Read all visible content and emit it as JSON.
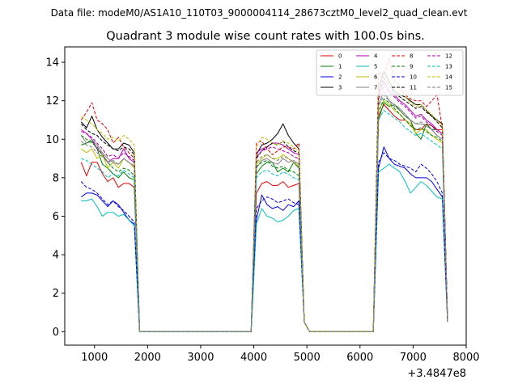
{
  "chart_data": {
    "type": "line",
    "suptitle": "Data file: modeM0/AS1A10_110T03_9000004114_28673cztM0_level2_quad_clean.evt",
    "title": "Quadrant 3 module wise count rates with 100.0s bins.",
    "xlabel": "",
    "ylabel": "",
    "x_offset_label": "+3.4847e8",
    "xlim": [
      440,
      8000
    ],
    "ylim": [
      -0.7,
      14.8
    ],
    "xticks": [
      1000,
      2000,
      3000,
      4000,
      5000,
      6000,
      7000,
      8000
    ],
    "yticks": [
      0,
      2,
      4,
      6,
      8,
      10,
      12,
      14
    ],
    "x": [
      750,
      850,
      950,
      1050,
      1150,
      1250,
      1350,
      1450,
      1550,
      1650,
      1750,
      1850,
      1950,
      2050,
      2150,
      2250,
      2350,
      2450,
      2550,
      2650,
      2750,
      2850,
      2950,
      3050,
      3150,
      3250,
      3350,
      3450,
      3550,
      3650,
      3750,
      3850,
      3950,
      4050,
      4150,
      4250,
      4350,
      4450,
      4550,
      4650,
      4750,
      4850,
      4950,
      5050,
      5150,
      5250,
      5350,
      5450,
      5550,
      5650,
      5750,
      5850,
      5950,
      6050,
      6150,
      6250,
      6350,
      6450,
      6550,
      6650,
      6750,
      6850,
      6950,
      7050,
      7150,
      7250,
      7350,
      7450,
      7550,
      7650
    ],
    "series": [
      {
        "name": "0",
        "color": "#e00000",
        "dash": false,
        "values": [
          8.8,
          8.1,
          8.8,
          8.8,
          8.2,
          7.8,
          8.0,
          7.5,
          7.7,
          7.7,
          7.5,
          0,
          0,
          0,
          0,
          0,
          0,
          0,
          0,
          0,
          0,
          0,
          0,
          0,
          0,
          0,
          0,
          0,
          0,
          0,
          0,
          0,
          0,
          7.2,
          7.7,
          7.8,
          7.6,
          7.6,
          7.8,
          7.5,
          7.6,
          7.7,
          0.5,
          0,
          0,
          0,
          0,
          0,
          0,
          0,
          0,
          0,
          0,
          0,
          0,
          0,
          11.2,
          11.8,
          11.5,
          11.2,
          11.0,
          11.0,
          10.8,
          10.5,
          10.5,
          10.8,
          10.7,
          10.5,
          10.5,
          0.5
        ]
      },
      {
        "name": "1",
        "color": "#008000",
        "dash": false,
        "values": [
          9.7,
          9.8,
          9.9,
          9.5,
          8.7,
          8.5,
          8.2,
          8.0,
          8.3,
          8.0,
          7.9,
          0,
          0,
          0,
          0,
          0,
          0,
          0,
          0,
          0,
          0,
          0,
          0,
          0,
          0,
          0,
          0,
          0,
          0,
          0,
          0,
          0,
          0,
          8.2,
          8.6,
          8.8,
          8.8,
          8.3,
          8.5,
          8.3,
          8.8,
          8.5,
          0.5,
          0,
          0,
          0,
          0,
          0,
          0,
          0,
          0,
          0,
          0,
          0,
          0,
          0,
          11.0,
          11.9,
          11.7,
          11.8,
          11.5,
          11.2,
          11.0,
          10.3,
          10.0,
          10.8,
          10.5,
          10.5,
          10.3,
          0.5
        ]
      },
      {
        "name": "2",
        "color": "#0000e0",
        "dash": false,
        "values": [
          7.0,
          7.2,
          7.2,
          7.1,
          6.8,
          6.5,
          6.8,
          6.6,
          6.2,
          5.8,
          5.6,
          0,
          0,
          0,
          0,
          0,
          0,
          0,
          0,
          0,
          0,
          0,
          0,
          0,
          0,
          0,
          0,
          0,
          0,
          0,
          0,
          0,
          0,
          5.8,
          7.1,
          6.6,
          6.4,
          6.5,
          6.3,
          6.6,
          6.5,
          6.8,
          0.5,
          0,
          0,
          0,
          0,
          0,
          0,
          0,
          0,
          0,
          0,
          0,
          0,
          0,
          8.5,
          9.6,
          9.0,
          8.7,
          8.6,
          8.5,
          8.2,
          8.0,
          8.0,
          8.0,
          7.8,
          7.4,
          7.0,
          0.5
        ]
      },
      {
        "name": "3",
        "color": "#000000",
        "dash": false,
        "values": [
          10.9,
          10.6,
          11.2,
          10.5,
          10.1,
          9.8,
          9.5,
          9.5,
          9.8,
          9.7,
          9.3,
          0,
          0,
          0,
          0,
          0,
          0,
          0,
          0,
          0,
          0,
          0,
          0,
          0,
          0,
          0,
          0,
          0,
          0,
          0,
          0,
          0,
          0,
          9.2,
          9.7,
          9.8,
          10.0,
          10.3,
          10.8,
          10.2,
          9.8,
          9.5,
          0.5,
          0,
          0,
          0,
          0,
          0,
          0,
          0,
          0,
          0,
          0,
          0,
          0,
          0,
          12.6,
          13.5,
          13.0,
          12.5,
          12.3,
          12.2,
          12.0,
          11.8,
          11.8,
          11.5,
          11.2,
          11.0,
          10.8,
          0.5
        ]
      },
      {
        "name": "4",
        "color": "#b000b0",
        "dash": false,
        "values": [
          10.5,
          10.3,
          10.0,
          9.5,
          9.2,
          8.8,
          9.0,
          9.0,
          9.5,
          9.0,
          8.8,
          0,
          0,
          0,
          0,
          0,
          0,
          0,
          0,
          0,
          0,
          0,
          0,
          0,
          0,
          0,
          0,
          0,
          0,
          0,
          0,
          0,
          0,
          9.3,
          9.5,
          9.6,
          9.8,
          9.8,
          9.7,
          9.5,
          9.3,
          9.2,
          0.5,
          0,
          0,
          0,
          0,
          0,
          0,
          0,
          0,
          0,
          0,
          0,
          0,
          0,
          12.3,
          13.0,
          12.5,
          12.3,
          12.0,
          11.8,
          11.5,
          11.2,
          11.3,
          11.0,
          10.8,
          10.5,
          10.3,
          0.5
        ]
      },
      {
        "name": "5",
        "color": "#00c0c0",
        "dash": false,
        "values": [
          6.8,
          6.8,
          6.9,
          6.5,
          6.0,
          6.2,
          6.2,
          6.0,
          6.1,
          5.8,
          5.5,
          0,
          0,
          0,
          0,
          0,
          0,
          0,
          0,
          0,
          0,
          0,
          0,
          0,
          0,
          0,
          0,
          0,
          0,
          0,
          0,
          0,
          0,
          5.6,
          6.4,
          6.0,
          5.9,
          5.7,
          5.8,
          6.0,
          6.3,
          6.4,
          0.5,
          0,
          0,
          0,
          0,
          0,
          0,
          0,
          0,
          0,
          0,
          0,
          0,
          0,
          8.3,
          8.5,
          8.7,
          8.5,
          8.3,
          7.8,
          7.2,
          7.5,
          7.8,
          7.6,
          7.3,
          7.0,
          6.9,
          0.5
        ]
      },
      {
        "name": "6",
        "color": "#c0c000",
        "dash": false,
        "values": [
          9.5,
          9.3,
          9.5,
          9.0,
          9.2,
          8.5,
          8.8,
          8.5,
          9.0,
          8.8,
          8.5,
          0,
          0,
          0,
          0,
          0,
          0,
          0,
          0,
          0,
          0,
          0,
          0,
          0,
          0,
          0,
          0,
          0,
          0,
          0,
          0,
          0,
          0,
          8.7,
          9.0,
          9.2,
          9.0,
          9.0,
          9.2,
          9.0,
          8.8,
          8.6,
          0.5,
          0,
          0,
          0,
          0,
          0,
          0,
          0,
          0,
          0,
          0,
          0,
          0,
          0,
          11.5,
          12.0,
          11.8,
          11.5,
          11.3,
          11.0,
          10.8,
          10.3,
          10.5,
          10.5,
          10.2,
          10.0,
          9.8,
          0.5
        ]
      },
      {
        "name": "7",
        "color": "#808080",
        "dash": false,
        "values": [
          10.2,
          9.8,
          10.0,
          9.7,
          9.3,
          9.0,
          8.8,
          8.7,
          9.0,
          8.8,
          8.6,
          0,
          0,
          0,
          0,
          0,
          0,
          0,
          0,
          0,
          0,
          0,
          0,
          0,
          0,
          0,
          0,
          0,
          0,
          0,
          0,
          0,
          0,
          8.5,
          8.9,
          9.0,
          8.8,
          8.7,
          9.0,
          8.8,
          8.9,
          8.7,
          0.5,
          0,
          0,
          0,
          0,
          0,
          0,
          0,
          0,
          0,
          0,
          0,
          0,
          0,
          11.8,
          12.5,
          12.0,
          11.8,
          11.6,
          11.3,
          11.0,
          10.8,
          10.8,
          10.7,
          10.5,
          10.2,
          10.0,
          0.5
        ]
      },
      {
        "name": "8",
        "color": "#e00000",
        "dash": true,
        "values": [
          11.0,
          11.4,
          11.9,
          11.0,
          10.8,
          10.5,
          9.8,
          10.1,
          9.6,
          9.3,
          9.0,
          0,
          0,
          0,
          0,
          0,
          0,
          0,
          0,
          0,
          0,
          0,
          0,
          0,
          0,
          0,
          0,
          0,
          0,
          0,
          0,
          0,
          0,
          9.8,
          9.9,
          9.5,
          9.2,
          9.4,
          9.6,
          9.6,
          9.5,
          9.8,
          0.5,
          0,
          0,
          0,
          0,
          0,
          0,
          0,
          0,
          0,
          0,
          0,
          0,
          0,
          13.5,
          13.2,
          14.2,
          13.0,
          12.8,
          12.3,
          12.1,
          12.0,
          12.0,
          11.7,
          12.0,
          12.3,
          10.6,
          0.5
        ]
      },
      {
        "name": "9",
        "color": "#008000",
        "dash": true,
        "values": [
          10.2,
          10.0,
          9.8,
          9.6,
          9.2,
          8.8,
          8.5,
          8.3,
          8.5,
          8.4,
          8.1,
          0,
          0,
          0,
          0,
          0,
          0,
          0,
          0,
          0,
          0,
          0,
          0,
          0,
          0,
          0,
          0,
          0,
          0,
          0,
          0,
          0,
          0,
          8.6,
          8.8,
          8.9,
          8.6,
          8.5,
          8.6,
          8.4,
          8.3,
          8.1,
          0.5,
          0,
          0,
          0,
          0,
          0,
          0,
          0,
          0,
          0,
          0,
          0,
          0,
          0,
          11.4,
          12.1,
          11.9,
          11.6,
          11.3,
          11.0,
          10.7,
          10.5,
          10.6,
          10.4,
          10.2,
          10.1,
          9.9,
          0.5
        ]
      },
      {
        "name": "10",
        "color": "#0000e0",
        "dash": true,
        "values": [
          7.8,
          7.5,
          7.4,
          7.2,
          6.9,
          6.6,
          6.8,
          6.5,
          6.3,
          6.0,
          5.7,
          0,
          0,
          0,
          0,
          0,
          0,
          0,
          0,
          0,
          0,
          0,
          0,
          0,
          0,
          0,
          0,
          0,
          0,
          0,
          0,
          0,
          0,
          6.4,
          6.8,
          7.0,
          6.9,
          6.7,
          6.8,
          6.9,
          6.7,
          6.6,
          0.5,
          0,
          0,
          0,
          0,
          0,
          0,
          0,
          0,
          0,
          0,
          0,
          0,
          0,
          8.8,
          9.3,
          9.0,
          8.9,
          8.7,
          8.6,
          8.5,
          8.3,
          8.7,
          8.5,
          8.2,
          7.8,
          7.2,
          0.5
        ]
      },
      {
        "name": "11",
        "color": "#000000",
        "dash": true,
        "values": [
          10.8,
          10.5,
          10.3,
          10.2,
          9.9,
          9.7,
          9.5,
          9.4,
          9.6,
          9.5,
          9.2,
          0,
          0,
          0,
          0,
          0,
          0,
          0,
          0,
          0,
          0,
          0,
          0,
          0,
          0,
          0,
          0,
          0,
          0,
          0,
          0,
          0,
          0,
          9.0,
          9.4,
          9.6,
          9.8,
          9.7,
          9.9,
          9.6,
          9.4,
          9.3,
          0.5,
          0,
          0,
          0,
          0,
          0,
          0,
          0,
          0,
          0,
          0,
          0,
          0,
          0,
          12.4,
          13.2,
          12.8,
          12.4,
          12.2,
          12.0,
          11.8,
          11.6,
          11.7,
          11.4,
          11.2,
          10.9,
          10.6,
          0.5
        ]
      },
      {
        "name": "12",
        "color": "#b000b0",
        "dash": true,
        "values": [
          10.4,
          10.3,
          10.1,
          9.8,
          9.5,
          9.1,
          9.2,
          9.0,
          9.3,
          9.1,
          8.9,
          0,
          0,
          0,
          0,
          0,
          0,
          0,
          0,
          0,
          0,
          0,
          0,
          0,
          0,
          0,
          0,
          0,
          0,
          0,
          0,
          0,
          0,
          9.1,
          9.4,
          9.5,
          9.6,
          9.5,
          9.4,
          9.3,
          9.1,
          9.0,
          0.5,
          0,
          0,
          0,
          0,
          0,
          0,
          0,
          0,
          0,
          0,
          0,
          0,
          0,
          12.1,
          12.8,
          12.4,
          12.2,
          11.9,
          11.7,
          11.4,
          11.1,
          11.2,
          10.9,
          10.7,
          10.4,
          10.2,
          0.5
        ]
      },
      {
        "name": "13",
        "color": "#00c0c0",
        "dash": true,
        "values": [
          9.0,
          8.9,
          8.7,
          8.5,
          8.3,
          8.0,
          8.2,
          8.1,
          8.4,
          8.2,
          8.0,
          0,
          0,
          0,
          0,
          0,
          0,
          0,
          0,
          0,
          0,
          0,
          0,
          0,
          0,
          0,
          0,
          0,
          0,
          0,
          0,
          0,
          0,
          8.0,
          8.3,
          8.4,
          8.2,
          8.1,
          8.3,
          8.2,
          8.0,
          7.9,
          0.5,
          0,
          0,
          0,
          0,
          0,
          0,
          0,
          0,
          0,
          0,
          0,
          0,
          0,
          11.0,
          11.5,
          11.3,
          11.1,
          10.9,
          10.6,
          10.4,
          10.2,
          10.3,
          10.1,
          9.9,
          9.7,
          9.5,
          0.5
        ]
      },
      {
        "name": "14",
        "color": "#c0c000",
        "dash": true,
        "values": [
          11.2,
          11.0,
          10.8,
          10.5,
          10.3,
          10.0,
          10.1,
          9.9,
          10.2,
          10.0,
          9.7,
          0,
          0,
          0,
          0,
          0,
          0,
          0,
          0,
          0,
          0,
          0,
          0,
          0,
          0,
          0,
          0,
          0,
          0,
          0,
          0,
          0,
          0,
          9.6,
          10.1,
          10.0,
          9.8,
          9.7,
          9.9,
          9.8,
          9.6,
          9.4,
          0.5,
          0,
          0,
          0,
          0,
          0,
          0,
          0,
          0,
          0,
          0,
          0,
          0,
          0,
          12.8,
          13.6,
          13.2,
          12.8,
          12.5,
          12.2,
          11.9,
          11.7,
          11.8,
          11.5,
          11.3,
          11.0,
          10.7,
          0.5
        ]
      },
      {
        "name": "15",
        "color": "#808080",
        "dash": true,
        "values": [
          9.9,
          9.7,
          9.6,
          9.3,
          9.1,
          8.8,
          8.9,
          8.7,
          9.0,
          8.8,
          8.6,
          0,
          0,
          0,
          0,
          0,
          0,
          0,
          0,
          0,
          0,
          0,
          0,
          0,
          0,
          0,
          0,
          0,
          0,
          0,
          0,
          0,
          0,
          8.8,
          9.1,
          9.2,
          9.0,
          8.9,
          9.1,
          9.0,
          8.8,
          8.7,
          0.5,
          0,
          0,
          0,
          0,
          0,
          0,
          0,
          0,
          0,
          0,
          0,
          0,
          0,
          11.7,
          12.3,
          12.0,
          11.7,
          11.5,
          11.2,
          11.0,
          10.8,
          10.9,
          10.7,
          10.5,
          10.2,
          10.0,
          0.5
        ]
      }
    ],
    "legend_position": "top-right",
    "legend_columns": 4
  }
}
